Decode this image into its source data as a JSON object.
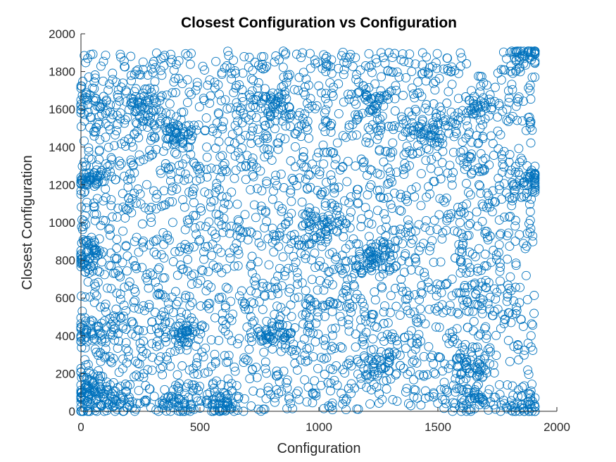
{
  "chart_data": {
    "type": "scatter",
    "title": "Closest Configuration vs Configuration",
    "xlabel": "Configuration",
    "ylabel": "Closest Configuration",
    "xlim": [
      0,
      2000
    ],
    "ylim": [
      0,
      2000
    ],
    "xticks": [
      0,
      500,
      1000,
      1500,
      2000
    ],
    "yticks": [
      0,
      200,
      400,
      600,
      800,
      1000,
      1200,
      1400,
      1600,
      1800,
      2000
    ],
    "xtick_labels": [
      "0",
      "500",
      "1000",
      "1500",
      "2000"
    ],
    "ytick_labels": [
      "0",
      "200",
      "400",
      "600",
      "800",
      "1000",
      "1200",
      "1400",
      "1600",
      "1800",
      "2000"
    ],
    "marker": "open-circle",
    "marker_color": "#0072BD",
    "grid": false,
    "point_count_estimate": 3600,
    "data_extent": {
      "x": [
        0,
        1908
      ],
      "y": [
        0,
        1908
      ]
    },
    "clusters": [
      {
        "x": 20,
        "y": 60
      },
      {
        "x": 40,
        "y": 130
      },
      {
        "x": 30,
        "y": 410
      },
      {
        "x": 20,
        "y": 820
      },
      {
        "x": 30,
        "y": 1230
      },
      {
        "x": 40,
        "y": 1620
      },
      {
        "x": 150,
        "y": 40
      },
      {
        "x": 250,
        "y": 1620
      },
      {
        "x": 400,
        "y": 40
      },
      {
        "x": 400,
        "y": 1480
      },
      {
        "x": 420,
        "y": 410
      },
      {
        "x": 600,
        "y": 40
      },
      {
        "x": 820,
        "y": 410
      },
      {
        "x": 830,
        "y": 1620
      },
      {
        "x": 1000,
        "y": 1000
      },
      {
        "x": 1220,
        "y": 1650
      },
      {
        "x": 1230,
        "y": 820
      },
      {
        "x": 1250,
        "y": 230
      },
      {
        "x": 1450,
        "y": 1480
      },
      {
        "x": 1630,
        "y": 60
      },
      {
        "x": 1640,
        "y": 230
      },
      {
        "x": 1660,
        "y": 1620
      },
      {
        "x": 1870,
        "y": 30
      },
      {
        "x": 1880,
        "y": 1230
      },
      {
        "x": 1860,
        "y": 1880
      }
    ]
  }
}
